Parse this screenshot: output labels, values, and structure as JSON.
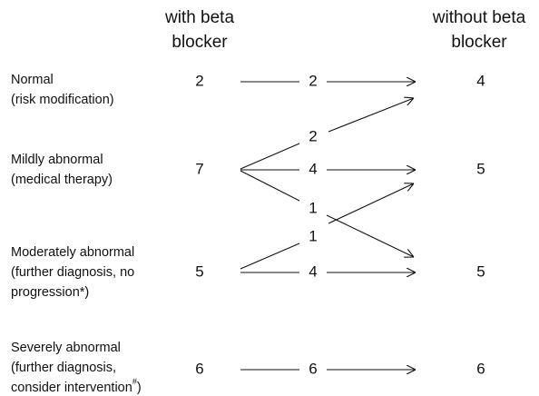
{
  "headers": {
    "left": [
      "with beta",
      "blocker"
    ],
    "right": [
      "without beta",
      "blocker"
    ]
  },
  "rows": [
    {
      "label": [
        "Normal",
        "(risk modification)"
      ],
      "left": 2,
      "right": 4
    },
    {
      "label": [
        "Mildly abnormal",
        "(medical therapy)"
      ],
      "left": 7,
      "right": 5
    },
    {
      "label": [
        "Moderately abnormal",
        "(further diagnosis, no",
        "progression*)"
      ],
      "left": 5,
      "right": 5
    },
    {
      "label": [
        "Severely abnormal",
        "(further diagnosis,"
      ],
      "label_last": {
        "text": "consider intervention",
        "sup": "#",
        "after": ")"
      },
      "left": 6,
      "right": 6
    }
  ],
  "flows": [
    {
      "from": "Normal",
      "to": "Normal",
      "count": 2
    },
    {
      "from": "Mildly abnormal",
      "to": "Normal",
      "count": 2
    },
    {
      "from": "Mildly abnormal",
      "to": "Mildly abnormal",
      "count": 4
    },
    {
      "from": "Mildly abnormal",
      "to": "Moderately abnormal",
      "count": 1
    },
    {
      "from": "Moderately abnormal",
      "to": "Mildly abnormal",
      "count": 1
    },
    {
      "from": "Moderately abnormal",
      "to": "Moderately abnormal",
      "count": 4
    },
    {
      "from": "Severely abnormal",
      "to": "Severely abnormal",
      "count": 6
    }
  ]
}
